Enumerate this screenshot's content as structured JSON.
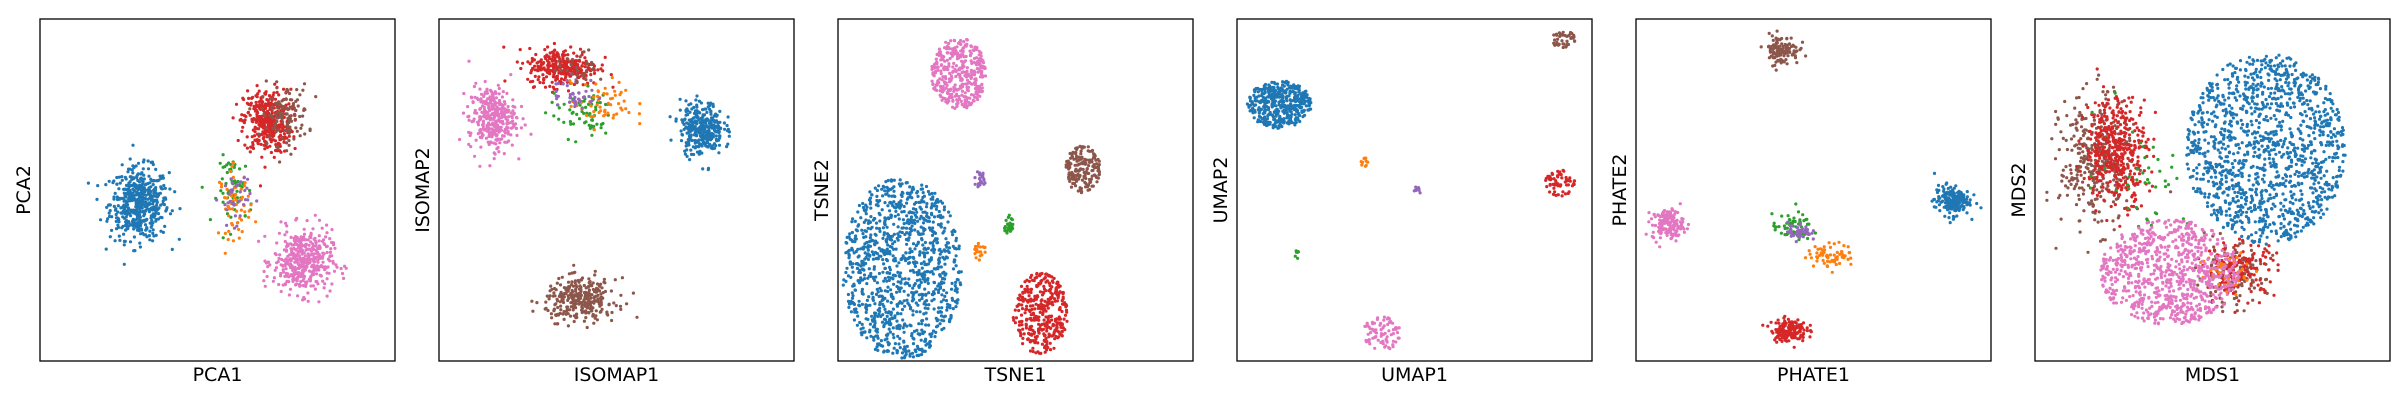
{
  "colors": {
    "blue": "#1f77b4",
    "orange": "#ff7f0e",
    "green": "#2ca02c",
    "red": "#d62728",
    "purple": "#9467bd",
    "brown": "#8c564b",
    "pink": "#e377c2"
  },
  "chart_data": [
    {
      "type": "scatter",
      "xlabel": "PCA1",
      "ylabel": "PCA2",
      "xlim": [
        0,
        1
      ],
      "ylim": [
        0,
        1
      ],
      "grid": false,
      "ticks": "none",
      "clusters": [
        {
          "color": "blue",
          "center": [
            0.28,
            0.46
          ],
          "spread": [
            0.075,
            0.095
          ],
          "n": 520
        },
        {
          "color": "red",
          "center": [
            0.64,
            0.7
          ],
          "spread": [
            0.06,
            0.085
          ],
          "n": 380
        },
        {
          "color": "brown",
          "center": [
            0.69,
            0.72
          ],
          "spread": [
            0.06,
            0.08
          ],
          "n": 120
        },
        {
          "color": "green",
          "center": [
            0.55,
            0.5
          ],
          "spread": [
            0.045,
            0.09
          ],
          "n": 60
        },
        {
          "color": "orange",
          "center": [
            0.55,
            0.46
          ],
          "spread": [
            0.04,
            0.09
          ],
          "n": 60
        },
        {
          "color": "purple",
          "center": [
            0.55,
            0.48
          ],
          "spread": [
            0.04,
            0.07
          ],
          "n": 40
        },
        {
          "color": "pink",
          "center": [
            0.74,
            0.29
          ],
          "spread": [
            0.075,
            0.085
          ],
          "n": 420
        }
      ]
    },
    {
      "type": "scatter",
      "xlabel": "ISOMAP1",
      "ylabel": "ISOMAP2",
      "xlim": [
        0,
        1
      ],
      "ylim": [
        0,
        1
      ],
      "grid": false,
      "ticks": "none",
      "clusters": [
        {
          "color": "red",
          "center": [
            0.35,
            0.86
          ],
          "spread": [
            0.09,
            0.05
          ],
          "n": 300
        },
        {
          "color": "pink",
          "center": [
            0.15,
            0.71
          ],
          "spread": [
            0.06,
            0.085
          ],
          "n": 330
        },
        {
          "color": "green",
          "center": [
            0.4,
            0.73
          ],
          "spread": [
            0.08,
            0.07
          ],
          "n": 70
        },
        {
          "color": "orange",
          "center": [
            0.46,
            0.75
          ],
          "spread": [
            0.08,
            0.06
          ],
          "n": 60
        },
        {
          "color": "purple",
          "center": [
            0.38,
            0.78
          ],
          "spread": [
            0.06,
            0.05
          ],
          "n": 40
        },
        {
          "color": "brown",
          "center": [
            0.4,
            0.86
          ],
          "spread": [
            0.06,
            0.04
          ],
          "n": 30
        },
        {
          "color": "blue",
          "center": [
            0.74,
            0.68
          ],
          "spread": [
            0.055,
            0.07
          ],
          "n": 330
        },
        {
          "color": "brown",
          "center": [
            0.4,
            0.18
          ],
          "spread": [
            0.09,
            0.055
          ],
          "n": 320
        }
      ]
    },
    {
      "type": "scatter",
      "xlabel": "TSNE1",
      "ylabel": "TSNE2",
      "xlim": [
        0,
        1
      ],
      "ylim": [
        0,
        1
      ],
      "grid": false,
      "ticks": "none",
      "clusters": [
        {
          "color": "pink",
          "center": [
            0.34,
            0.84
          ],
          "spread": [
            0.055,
            0.075
          ],
          "n": 380,
          "shape": "disc"
        },
        {
          "color": "brown",
          "center": [
            0.69,
            0.56
          ],
          "spread": [
            0.035,
            0.05
          ],
          "n": 180,
          "shape": "disc"
        },
        {
          "color": "purple",
          "center": [
            0.4,
            0.53
          ],
          "spread": [
            0.012,
            0.018
          ],
          "n": 25,
          "shape": "disc"
        },
        {
          "color": "green",
          "center": [
            0.48,
            0.4
          ],
          "spread": [
            0.012,
            0.02
          ],
          "n": 25,
          "shape": "disc"
        },
        {
          "color": "orange",
          "center": [
            0.4,
            0.32
          ],
          "spread": [
            0.012,
            0.018
          ],
          "n": 20,
          "shape": "disc"
        },
        {
          "color": "blue",
          "center": [
            0.18,
            0.27
          ],
          "spread": [
            0.12,
            0.19
          ],
          "n": 1100,
          "shape": "disc"
        },
        {
          "color": "red",
          "center": [
            0.57,
            0.14
          ],
          "spread": [
            0.055,
            0.085
          ],
          "n": 360,
          "shape": "disc"
        }
      ]
    },
    {
      "type": "scatter",
      "xlabel": "UMAP1",
      "ylabel": "UMAP2",
      "xlim": [
        0,
        1
      ],
      "ylim": [
        0,
        1
      ],
      "grid": false,
      "ticks": "none",
      "clusters": [
        {
          "color": "blue",
          "center": [
            0.12,
            0.75
          ],
          "spread": [
            0.065,
            0.05
          ],
          "n": 420,
          "shape": "disc"
        },
        {
          "color": "brown",
          "center": [
            0.92,
            0.94
          ],
          "spread": [
            0.025,
            0.018
          ],
          "n": 45,
          "shape": "disc"
        },
        {
          "color": "red",
          "center": [
            0.91,
            0.52
          ],
          "spread": [
            0.03,
            0.028
          ],
          "n": 60,
          "shape": "disc"
        },
        {
          "color": "orange",
          "center": [
            0.36,
            0.58
          ],
          "spread": [
            0.008,
            0.01
          ],
          "n": 10,
          "shape": "disc"
        },
        {
          "color": "purple",
          "center": [
            0.51,
            0.5
          ],
          "spread": [
            0.008,
            0.008
          ],
          "n": 10,
          "shape": "disc"
        },
        {
          "color": "green",
          "center": [
            0.17,
            0.31
          ],
          "spread": [
            0.006,
            0.01
          ],
          "n": 8,
          "shape": "disc"
        },
        {
          "color": "pink",
          "center": [
            0.41,
            0.08
          ],
          "spread": [
            0.04,
            0.035
          ],
          "n": 80,
          "shape": "disc"
        }
      ]
    },
    {
      "type": "scatter",
      "xlabel": "PHATE1",
      "ylabel": "PHATE2",
      "xlim": [
        0,
        1
      ],
      "ylim": [
        0,
        1
      ],
      "grid": false,
      "ticks": "none",
      "clusters": [
        {
          "color": "brown",
          "center": [
            0.41,
            0.91
          ],
          "spread": [
            0.045,
            0.04
          ],
          "n": 120
        },
        {
          "color": "pink",
          "center": [
            0.09,
            0.4
          ],
          "spread": [
            0.04,
            0.04
          ],
          "n": 150
        },
        {
          "color": "blue",
          "center": [
            0.89,
            0.47
          ],
          "spread": [
            0.045,
            0.04
          ],
          "n": 180
        },
        {
          "color": "green",
          "center": [
            0.44,
            0.39
          ],
          "spread": [
            0.05,
            0.035
          ],
          "n": 60
        },
        {
          "color": "purple",
          "center": [
            0.46,
            0.38
          ],
          "spread": [
            0.03,
            0.025
          ],
          "n": 50
        },
        {
          "color": "orange",
          "center": [
            0.55,
            0.31
          ],
          "spread": [
            0.06,
            0.03
          ],
          "n": 70
        },
        {
          "color": "red",
          "center": [
            0.43,
            0.09
          ],
          "spread": [
            0.045,
            0.03
          ],
          "n": 150
        }
      ]
    },
    {
      "type": "scatter",
      "xlabel": "MDS1",
      "ylabel": "MDS2",
      "xlim": [
        0,
        1
      ],
      "ylim": [
        0,
        1
      ],
      "grid": false,
      "ticks": "none",
      "clusters": [
        {
          "color": "blue",
          "center": [
            0.65,
            0.62
          ],
          "spread": [
            0.16,
            0.2
          ],
          "n": 1300,
          "shape": "disc"
        },
        {
          "color": "brown",
          "center": [
            0.17,
            0.58
          ],
          "spread": [
            0.09,
            0.17
          ],
          "n": 350
        },
        {
          "color": "red",
          "center": [
            0.23,
            0.62
          ],
          "spread": [
            0.08,
            0.14
          ],
          "n": 420
        },
        {
          "color": "brown",
          "center": [
            0.55,
            0.25
          ],
          "spread": [
            0.09,
            0.08
          ],
          "n": 150
        },
        {
          "color": "red",
          "center": [
            0.58,
            0.27
          ],
          "spread": [
            0.09,
            0.07
          ],
          "n": 150
        },
        {
          "color": "orange",
          "center": [
            0.55,
            0.26
          ],
          "spread": [
            0.08,
            0.06
          ],
          "n": 50
        },
        {
          "color": "green",
          "center": [
            0.3,
            0.55
          ],
          "spread": [
            0.12,
            0.15
          ],
          "n": 40
        },
        {
          "color": "pink",
          "center": [
            0.38,
            0.26
          ],
          "spread": [
            0.14,
            0.11
          ],
          "n": 800,
          "shape": "disc"
        }
      ]
    }
  ]
}
